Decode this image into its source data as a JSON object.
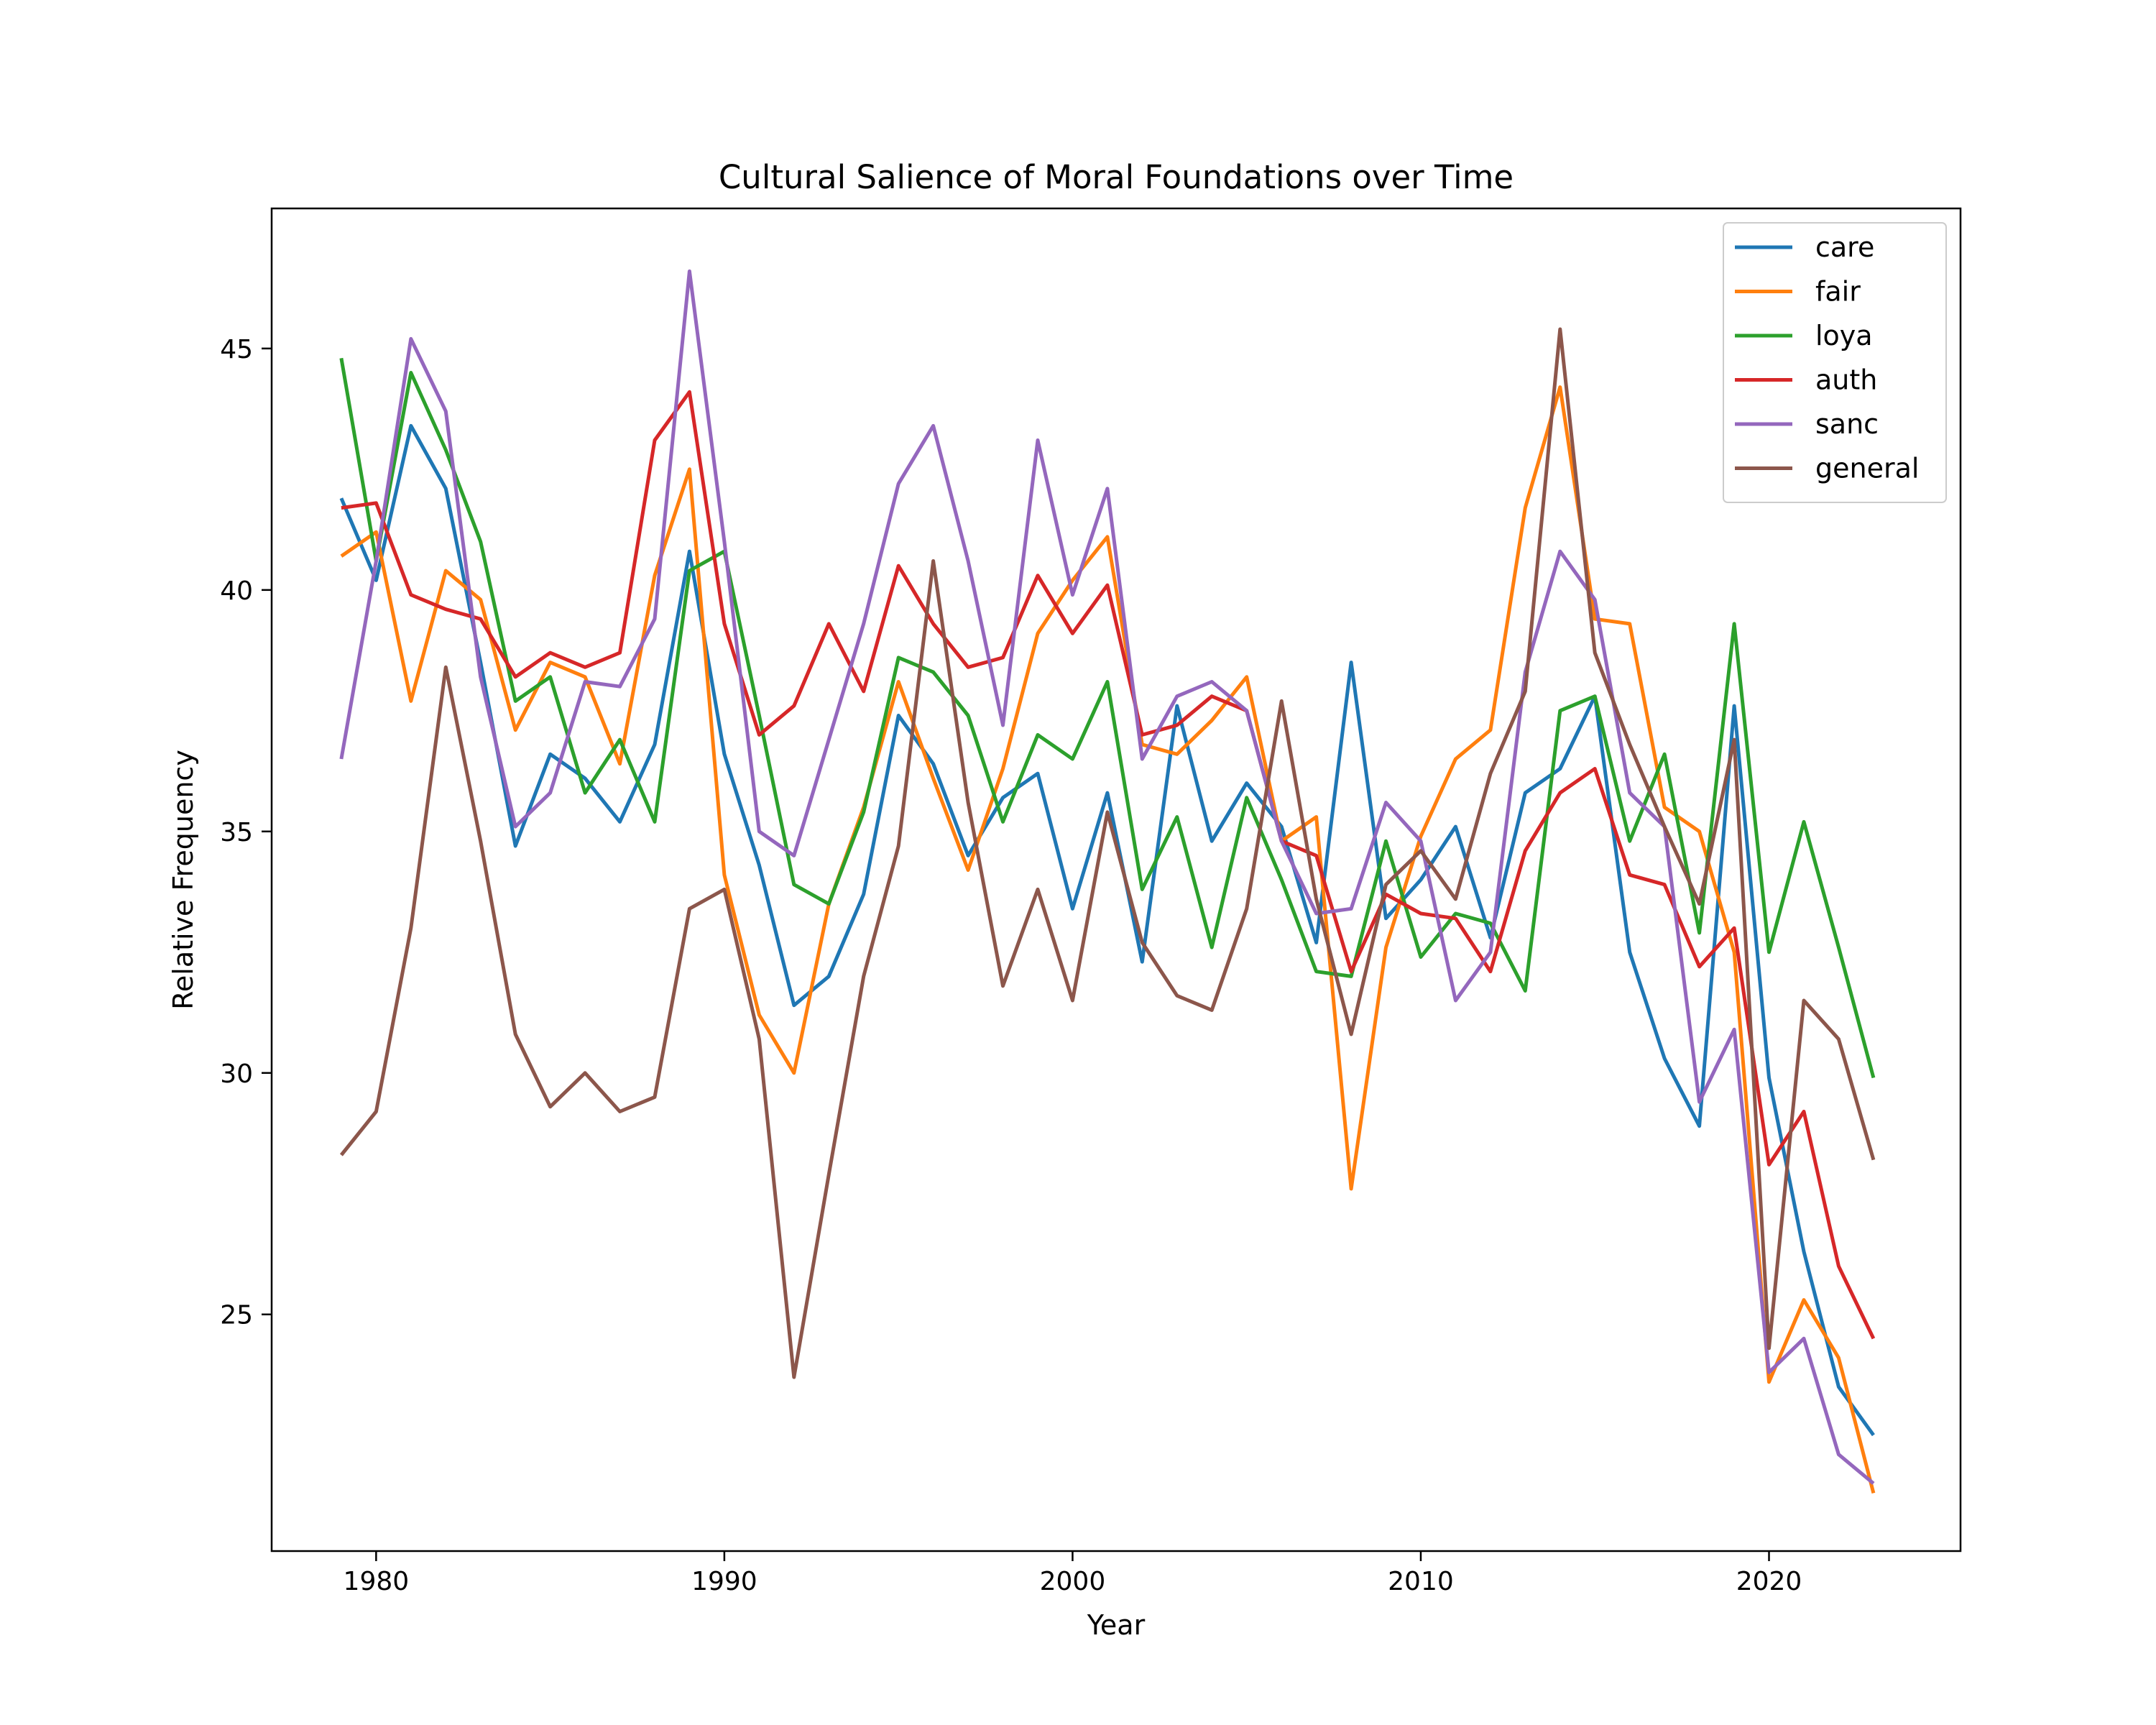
{
  "chart_data": {
    "type": "line",
    "title": "Cultural Salience of Moral Foundations over Time",
    "xlabel": "Year",
    "ylabel": "Relative Frequency",
    "xlim": [
      1977,
      2025.5
    ],
    "ylim": [
      20.1,
      47.9
    ],
    "xticks": [
      1980,
      1990,
      2000,
      2010,
      2020
    ],
    "yticks": [
      25,
      30,
      35,
      40,
      45
    ],
    "legend": "top-right",
    "grid": false,
    "x": [
      1979,
      1980,
      1981,
      1982,
      1983,
      1984,
      1985,
      1986,
      1987,
      1988,
      1989,
      1990,
      1991,
      1992,
      1993,
      1994,
      1995,
      1996,
      1997,
      1998,
      1999,
      2000,
      2001,
      2002,
      2003,
      2004,
      2005,
      2006,
      2007,
      2008,
      2009,
      2010,
      2011,
      2012,
      2013,
      2014,
      2015,
      2016,
      2017,
      2018,
      2019,
      2020,
      2021,
      2022,
      2023
    ],
    "series": [
      {
        "name": "care",
        "color": "#1f77b4",
        "values": [
          41.9,
          40.2,
          43.4,
          42.1,
          38.5,
          34.7,
          36.6,
          36.1,
          35.2,
          36.8,
          40.8,
          36.6,
          34.3,
          31.4,
          32.0,
          33.7,
          37.4,
          36.4,
          34.5,
          35.7,
          36.2,
          33.4,
          35.8,
          32.3,
          37.6,
          34.8,
          36.0,
          35.1,
          32.7,
          38.5,
          33.2,
          34.0,
          35.1,
          32.8,
          35.8,
          36.3,
          37.8,
          32.5,
          30.3,
          28.9,
          37.6,
          29.9,
          26.3,
          23.5,
          22.5
        ]
      },
      {
        "name": "fair",
        "color": "#ff7f0e",
        "values": [
          40.7,
          41.2,
          37.7,
          40.4,
          39.8,
          37.1,
          38.5,
          38.2,
          36.4,
          40.3,
          42.5,
          34.1,
          31.2,
          30.0,
          33.5,
          35.5,
          38.1,
          36.1,
          34.2,
          36.3,
          39.1,
          40.2,
          41.1,
          36.8,
          36.6,
          37.3,
          38.2,
          34.8,
          35.3,
          27.6,
          32.6,
          34.9,
          36.5,
          37.1,
          41.7,
          44.2,
          39.4,
          39.3,
          35.5,
          35.0,
          32.5,
          23.6,
          25.3,
          24.1,
          21.3
        ]
      },
      {
        "name": "loya",
        "color": "#2ca02c",
        "values": [
          44.8,
          40.6,
          44.5,
          42.9,
          41.0,
          37.7,
          38.2,
          35.8,
          36.9,
          35.2,
          40.4,
          40.8,
          37.4,
          33.9,
          33.5,
          35.4,
          38.6,
          38.3,
          37.4,
          35.2,
          37.0,
          36.5,
          38.1,
          33.8,
          35.3,
          32.6,
          35.7,
          34.0,
          32.1,
          32.0,
          34.8,
          32.4,
          33.3,
          33.1,
          31.7,
          37.5,
          37.8,
          34.8,
          36.6,
          32.9,
          39.3,
          32.5,
          35.2,
          32.6,
          29.9
        ]
      },
      {
        "name": "auth",
        "color": "#d62728",
        "values": [
          41.7,
          41.8,
          39.9,
          39.6,
          39.4,
          38.2,
          38.7,
          38.4,
          38.7,
          43.1,
          44.1,
          39.3,
          37.0,
          37.6,
          39.3,
          37.9,
          40.5,
          39.3,
          38.4,
          38.6,
          40.3,
          39.1,
          40.1,
          37.0,
          37.2,
          37.8,
          37.5,
          34.8,
          34.5,
          32.1,
          33.7,
          33.3,
          33.2,
          32.1,
          34.6,
          35.8,
          36.3,
          34.1,
          33.9,
          32.2,
          33.0,
          28.1,
          29.2,
          26.0,
          24.5
        ]
      },
      {
        "name": "sanc",
        "color": "#9467bd",
        "values": [
          36.5,
          40.6,
          45.2,
          43.7,
          38.2,
          35.1,
          35.8,
          38.1,
          38.0,
          39.4,
          46.6,
          41.0,
          35.0,
          34.5,
          36.9,
          39.3,
          42.2,
          43.4,
          40.6,
          37.2,
          43.1,
          39.9,
          42.1,
          36.5,
          37.8,
          38.1,
          37.5,
          34.8,
          33.3,
          33.4,
          35.6,
          34.8,
          31.5,
          32.5,
          38.3,
          40.8,
          39.8,
          35.8,
          35.1,
          29.4,
          30.9,
          23.8,
          24.5,
          22.1,
          21.5
        ]
      },
      {
        "name": "general",
        "color": "#8c564b",
        "values": [
          28.3,
          29.2,
          33.0,
          38.4,
          34.8,
          30.8,
          29.3,
          30.0,
          29.2,
          29.5,
          33.4,
          33.8,
          30.7,
          23.7,
          27.9,
          32.0,
          34.7,
          40.6,
          35.6,
          31.8,
          33.8,
          31.5,
          35.4,
          32.7,
          31.6,
          31.3,
          33.4,
          37.7,
          33.6,
          30.8,
          33.9,
          34.6,
          33.6,
          36.2,
          37.9,
          45.4,
          38.7,
          36.8,
          35.1,
          33.5,
          36.9,
          24.3,
          31.5,
          30.7,
          28.2
        ]
      }
    ]
  }
}
